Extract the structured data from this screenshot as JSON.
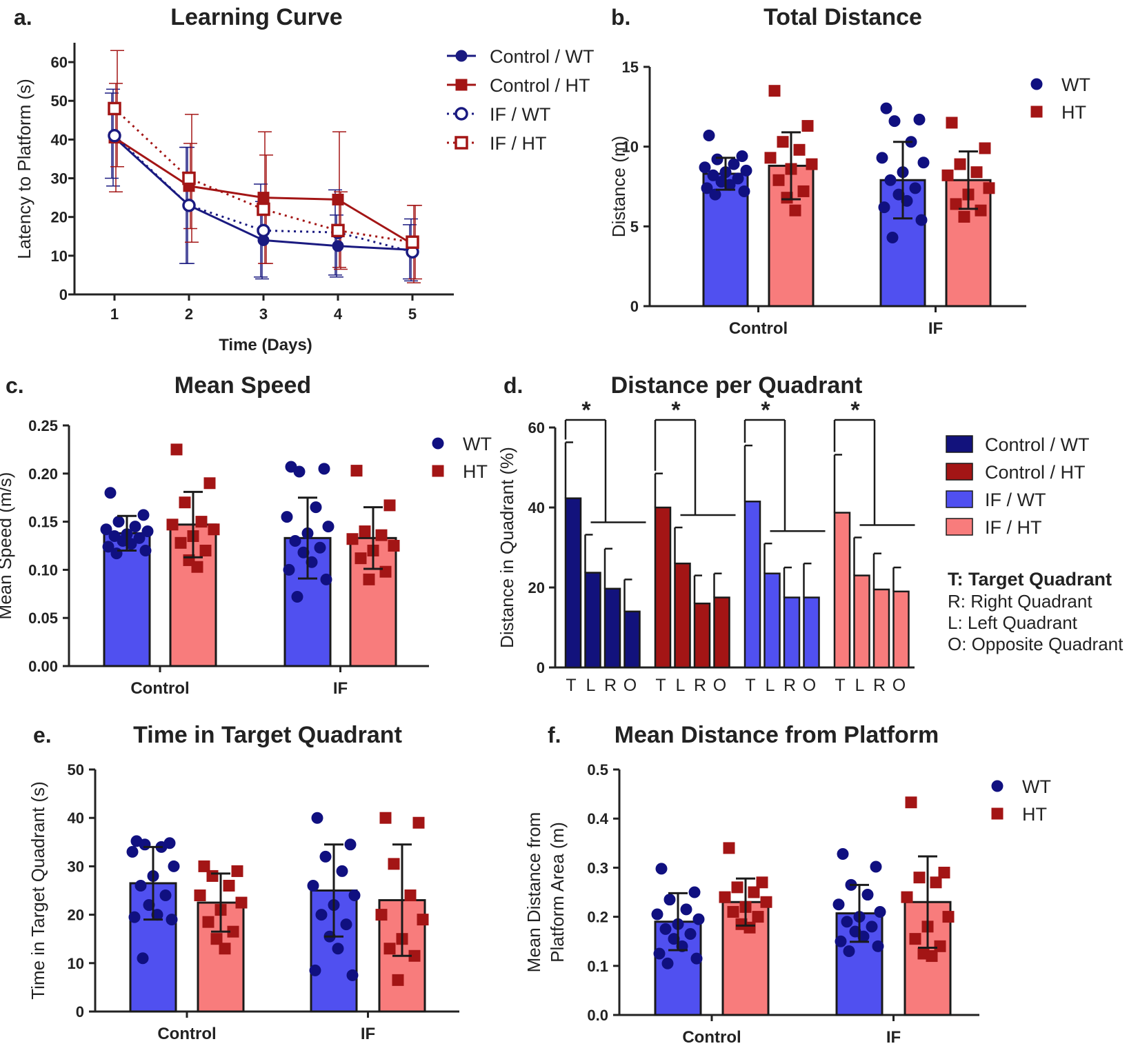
{
  "colors": {
    "wt_line": "#1a1a80",
    "ht_line": "#a31515",
    "wt_bar": "#5050f0",
    "ht_bar": "#f87c7c",
    "wt_dot": "#101080",
    "ht_dot": "#a31515",
    "ctrl_wt_bar": "#12127c",
    "ctrl_ht_bar": "#a31515"
  },
  "chart_data": [
    {
      "id": "a",
      "panel_label": "a.",
      "type": "line",
      "title": "Learning Curve",
      "xlabel": "Time (Days)",
      "ylabel": "Latency to Platform (s)",
      "x": [
        1,
        2,
        3,
        4,
        5
      ],
      "x_tick_labels": [
        "1",
        "2",
        "3",
        "4",
        "5"
      ],
      "ylim": [
        0,
        65
      ],
      "y_ticks": [
        0,
        10,
        20,
        30,
        40,
        50,
        60
      ],
      "y_tick_labels": [
        "0",
        "10",
        "20",
        "30",
        "40",
        "50",
        "60"
      ],
      "series": [
        {
          "name": "Control / WT",
          "values": [
            40.5,
            23,
            14,
            12.5,
            11.5
          ],
          "errors": [
            12.5,
            15,
            10,
            8,
            8
          ],
          "color": "#1a1a80",
          "marker": "circle",
          "filled": true,
          "dashed": false
        },
        {
          "name": "Control / HT",
          "values": [
            40.5,
            28,
            25,
            24.5,
            13
          ],
          "errors": [
            14,
            11,
            17,
            17.5,
            10
          ],
          "color": "#a31515",
          "marker": "square",
          "filled": true,
          "dashed": false
        },
        {
          "name": "IF / WT",
          "values": [
            41,
            23,
            16.5,
            16,
            11
          ],
          "errors": [
            11,
            15,
            12,
            11,
            7
          ],
          "color": "#1a1a80",
          "marker": "circle",
          "filled": false,
          "dashed": true
        },
        {
          "name": "IF / HT",
          "values": [
            48,
            30,
            22,
            16.5,
            13.5
          ],
          "errors": [
            15,
            16.5,
            14,
            10,
            9.5
          ],
          "color": "#a31515",
          "marker": "square",
          "filled": false,
          "dashed": true
        }
      ]
    },
    {
      "id": "b",
      "panel_label": "b.",
      "type": "bar",
      "title": "Total Distance",
      "ylabel": "Distance (m)",
      "categories": [
        "Control",
        "IF"
      ],
      "ylim": [
        0,
        15
      ],
      "y_ticks": [
        0,
        5,
        10,
        15
      ],
      "y_tick_labels": [
        "0",
        "5",
        "10",
        "15"
      ],
      "legend": [
        "WT",
        "HT"
      ],
      "series": [
        {
          "name": "WT",
          "means": [
            8.3,
            7.9
          ],
          "sd": [
            1.0,
            2.4
          ],
          "points": [
            [
              10.7,
              9.4,
              9.2,
              8.9,
              8.7,
              8.5,
              8.4,
              8.2,
              8.0,
              7.8,
              7.6,
              7.4,
              7.2,
              7.0
            ],
            [
              12.4,
              11.7,
              11.6,
              10.3,
              9.3,
              9.0,
              8.4,
              7.9,
              7.4,
              7.0,
              6.6,
              6.2,
              5.4,
              4.3
            ]
          ]
        },
        {
          "name": "HT",
          "means": [
            8.8,
            7.9
          ],
          "sd": [
            2.1,
            1.8
          ],
          "points": [
            [
              13.5,
              11.3,
              10.3,
              9.8,
              9.3,
              8.9,
              8.6,
              7.9,
              7.2,
              6.8,
              6.0
            ],
            [
              11.5,
              9.9,
              8.9,
              8.4,
              8.2,
              7.4,
              7.0,
              6.4,
              6.0,
              5.6
            ]
          ]
        }
      ]
    },
    {
      "id": "c",
      "panel_label": "c.",
      "type": "bar",
      "title": "Mean Speed",
      "ylabel": "Mean Speed (m/s)",
      "categories": [
        "Control",
        "IF"
      ],
      "ylim": [
        0,
        0.25
      ],
      "y_ticks": [
        0,
        0.05,
        0.1,
        0.15,
        0.2,
        0.25
      ],
      "y_tick_labels": [
        "0.00",
        "0.05",
        "0.10",
        "0.15",
        "0.20",
        "0.25"
      ],
      "legend": [
        "WT",
        "HT"
      ],
      "series": [
        {
          "name": "WT",
          "means": [
            0.138,
            0.133
          ],
          "sd": [
            0.018,
            0.042
          ],
          "points": [
            [
              0.18,
              0.157,
              0.15,
              0.145,
              0.142,
              0.14,
              0.137,
              0.135,
              0.133,
              0.13,
              0.127,
              0.124,
              0.12,
              0.117
            ],
            [
              0.207,
              0.205,
              0.202,
              0.165,
              0.155,
              0.145,
              0.138,
              0.13,
              0.123,
              0.118,
              0.108,
              0.1,
              0.09,
              0.072
            ]
          ]
        },
        {
          "name": "HT",
          "means": [
            0.147,
            0.133
          ],
          "sd": [
            0.034,
            0.032
          ],
          "points": [
            [
              0.225,
              0.19,
              0.17,
              0.15,
              0.147,
              0.142,
              0.135,
              0.128,
              0.12,
              0.11,
              0.103
            ],
            [
              0.203,
              0.167,
              0.14,
              0.136,
              0.132,
              0.125,
              0.12,
              0.112,
              0.098,
              0.09
            ]
          ]
        }
      ]
    },
    {
      "id": "d",
      "panel_label": "d.",
      "type": "bar",
      "title": "Distance per Quadrant",
      "ylabel": "Distance in Quadrant (%)",
      "ylim": [
        0,
        60
      ],
      "y_ticks": [
        0,
        20,
        40,
        60
      ],
      "y_tick_labels": [
        "0",
        "20",
        "40",
        "60"
      ],
      "quadrant_labels": [
        "T",
        "L",
        "R",
        "O"
      ],
      "significance": "*",
      "groups": [
        {
          "name": "Control / WT",
          "values": [
            42.3,
            23.7,
            19.7,
            14
          ],
          "errors": [
            14,
            9.5,
            10,
            8
          ]
        },
        {
          "name": "Control / HT",
          "values": [
            40,
            26,
            16,
            17.5
          ],
          "errors": [
            8.5,
            9,
            7,
            6
          ]
        },
        {
          "name": "IF / WT",
          "values": [
            41.5,
            23.5,
            17.5,
            17.5
          ],
          "errors": [
            14,
            7.5,
            7.5,
            8.5
          ]
        },
        {
          "name": "IF / HT",
          "values": [
            38.7,
            23,
            19.5,
            19
          ],
          "errors": [
            14.5,
            9.5,
            9,
            6
          ]
        }
      ],
      "legend_note_title": "T: Target Quadrant",
      "legend_notes": [
        "R: Right Quadrant",
        "L: Left Quadrant",
        "O: Opposite Quadrant"
      ]
    },
    {
      "id": "e",
      "panel_label": "e.",
      "type": "bar",
      "title": "Time in Target Quadrant",
      "ylabel": "Time in Target Quadrant (s)",
      "categories": [
        "Control",
        "IF"
      ],
      "ylim": [
        0,
        50
      ],
      "y_ticks": [
        0,
        10,
        20,
        30,
        40,
        50
      ],
      "y_tick_labels": [
        "0",
        "10",
        "20",
        "30",
        "40",
        "50"
      ],
      "legend": [],
      "series": [
        {
          "name": "WT",
          "means": [
            26.5,
            25
          ],
          "sd": [
            7.5,
            9.5
          ],
          "points": [
            [
              35.2,
              34.8,
              34.5,
              34.0,
              33.0,
              30.0,
              28.0,
              26.0,
              24.0,
              22.0,
              20.0,
              19.5,
              19.0,
              11.0
            ],
            [
              40.0,
              34.5,
              32.0,
              29.0,
              26.0,
              24.0,
              22.0,
              20.0,
              18.0,
              15.5,
              13.0,
              8.5,
              7.5
            ]
          ]
        },
        {
          "name": "HT",
          "means": [
            22.5,
            23
          ],
          "sd": [
            6,
            11.5
          ],
          "points": [
            [
              30.0,
              29.0,
              28.0,
              26.0,
              24.0,
              22.5,
              21.0,
              18.5,
              16.5,
              15.0,
              13.0
            ],
            [
              40.0,
              39.0,
              30.5,
              24.0,
              20.0,
              19.0,
              15.0,
              13.0,
              11.5,
              6.5
            ]
          ]
        }
      ]
    },
    {
      "id": "f",
      "panel_label": "f.",
      "type": "bar",
      "title": "Mean Distance from Platform",
      "ylabel": "Mean Distance from Platform Area (m)",
      "ylabel_lines": [
        "Mean Distance from",
        "Platform Area (m)"
      ],
      "categories": [
        "Control",
        "IF"
      ],
      "ylim": [
        0,
        0.5
      ],
      "y_ticks": [
        0,
        0.1,
        0.2,
        0.3,
        0.4,
        0.5
      ],
      "y_tick_labels": [
        "0.0",
        "0.1",
        "0.2",
        "0.3",
        "0.4",
        "0.5"
      ],
      "legend": [
        "WT",
        "HT"
      ],
      "series": [
        {
          "name": "WT",
          "means": [
            0.19,
            0.207
          ],
          "sd": [
            0.058,
            0.058
          ],
          "points": [
            [
              0.298,
              0.25,
              0.235,
              0.215,
              0.205,
              0.195,
              0.185,
              0.175,
              0.165,
              0.155,
              0.14,
              0.125,
              0.115,
              0.105
            ],
            [
              0.328,
              0.302,
              0.265,
              0.245,
              0.225,
              0.21,
              0.2,
              0.19,
              0.18,
              0.17,
              0.16,
              0.15,
              0.14,
              0.13
            ]
          ]
        },
        {
          "name": "HT",
          "means": [
            0.23,
            0.23
          ],
          "sd": [
            0.048,
            0.093
          ],
          "points": [
            [
              0.34,
              0.27,
              0.26,
              0.25,
              0.24,
              0.23,
              0.22,
              0.21,
              0.2,
              0.185,
              0.178
            ],
            [
              0.433,
              0.29,
              0.28,
              0.27,
              0.24,
              0.2,
              0.18,
              0.155,
              0.14,
              0.125,
              0.12
            ]
          ]
        }
      ]
    }
  ]
}
